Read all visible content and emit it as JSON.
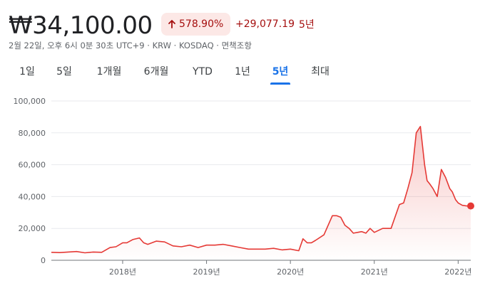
{
  "header": {
    "price": "₩34,100.00",
    "change_pct": "578.90%",
    "change_abs": "+29,077.19",
    "change_period": "5년",
    "meta": "2월 22일, 오후 6시 0분 30초 UTC+9 · KRW · KOSDAQ · 면책조항",
    "arrow_icon": "arrow-up-icon"
  },
  "colors": {
    "line": "#e53935",
    "badge_bg": "#fce8e6",
    "badge_text": "#a50e0e",
    "active_tab": "#1a73e8"
  },
  "tabs": [
    {
      "label": "1일",
      "active": false
    },
    {
      "label": "5일",
      "active": false
    },
    {
      "label": "1개월",
      "active": false
    },
    {
      "label": "6개월",
      "active": false
    },
    {
      "label": "YTD",
      "active": false
    },
    {
      "label": "1년",
      "active": false
    },
    {
      "label": "5년",
      "active": true
    },
    {
      "label": "최대",
      "active": false
    }
  ],
  "chart_data": {
    "type": "area",
    "title": "",
    "xlabel": "",
    "ylabel": "",
    "ylim": [
      0,
      100000
    ],
    "xlim": [
      2017.15,
      2022.15
    ],
    "yticks": [
      0,
      20000,
      40000,
      60000,
      80000,
      100000
    ],
    "ytick_labels": [
      "0",
      "20,000",
      "40,000",
      "60,000",
      "80,000",
      "100,000"
    ],
    "xticks": [
      2018,
      2019,
      2020,
      2021,
      2022
    ],
    "xtick_labels": [
      "2018년",
      "2019년",
      "2020년",
      "2021년",
      "2022년"
    ],
    "grid": true,
    "series": [
      {
        "x": [
          2017.15,
          2017.25,
          2017.35,
          2017.45,
          2017.55,
          2017.65,
          2017.75,
          2017.85,
          2017.92,
          2018.0,
          2018.05,
          2018.12,
          2018.2,
          2018.25,
          2018.3,
          2018.4,
          2018.5,
          2018.6,
          2018.7,
          2018.8,
          2018.9,
          2019.0,
          2019.1,
          2019.2,
          2019.3,
          2019.4,
          2019.5,
          2019.6,
          2019.7,
          2019.8,
          2019.9,
          2020.0,
          2020.1,
          2020.15,
          2020.2,
          2020.25,
          2020.3,
          2020.4,
          2020.5,
          2020.55,
          2020.6,
          2020.65,
          2020.7,
          2020.75,
          2020.8,
          2020.85,
          2020.9,
          2020.95,
          2021.0,
          2021.1,
          2021.2,
          2021.3,
          2021.35,
          2021.4,
          2021.45,
          2021.5,
          2021.55,
          2021.6,
          2021.63,
          2021.66,
          2021.7,
          2021.75,
          2021.8,
          2021.85,
          2021.9,
          2021.93,
          2021.97,
          2022.0,
          2022.05,
          2022.1,
          2022.15
        ],
        "y": [
          5000,
          4800,
          5200,
          5500,
          4700,
          5200,
          5000,
          8000,
          8500,
          11000,
          11000,
          13000,
          14000,
          11000,
          10000,
          12000,
          11500,
          9000,
          8500,
          9500,
          8000,
          9500,
          9500,
          10000,
          9000,
          8000,
          7000,
          7000,
          7000,
          7500,
          6500,
          7000,
          6000,
          13500,
          11000,
          11000,
          12500,
          16000,
          28000,
          28000,
          27000,
          22000,
          20000,
          17000,
          17500,
          18000,
          17000,
          20000,
          17500,
          20000,
          20000,
          35000,
          36000,
          45000,
          55000,
          80000,
          84000,
          60000,
          50000,
          48000,
          45000,
          40000,
          57000,
          52000,
          45000,
          43000,
          38000,
          36000,
          34500,
          34100,
          34100
        ]
      }
    ],
    "last_value": 34100
  }
}
